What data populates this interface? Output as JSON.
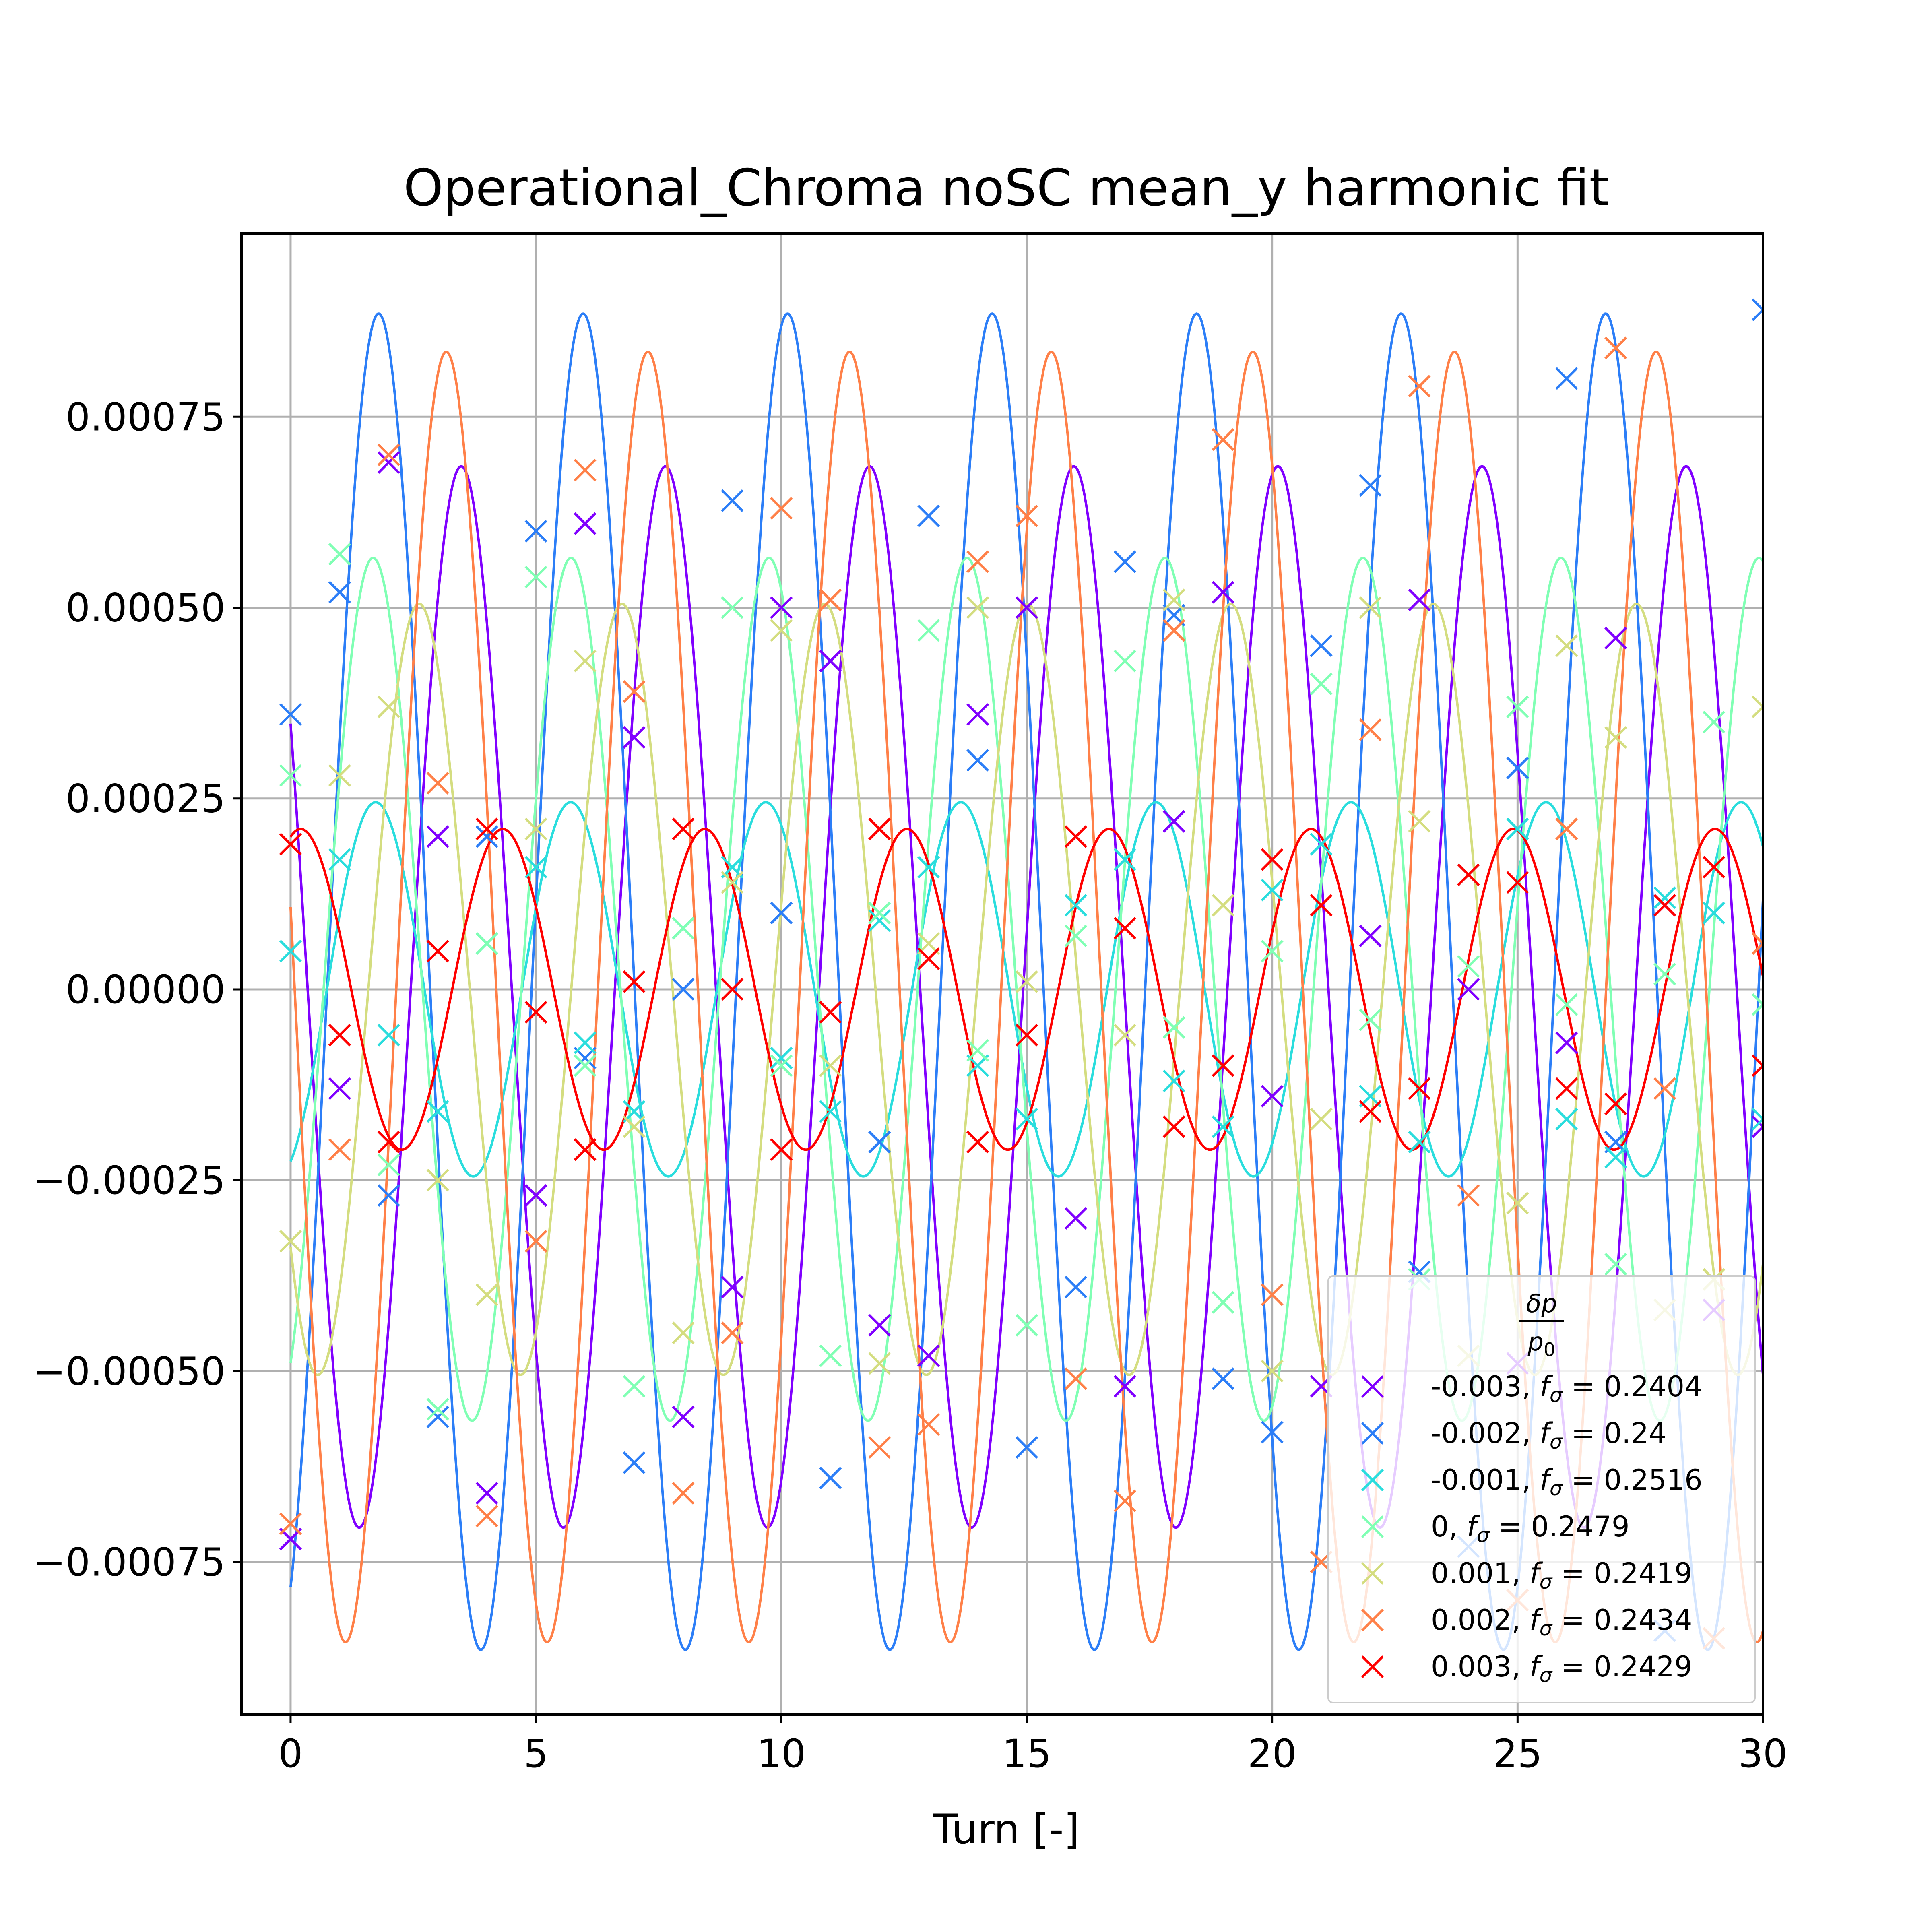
{
  "chart_data": {
    "type": "scatter",
    "title": "Operational_Chroma noSC mean_y harmonic fit",
    "xlabel": "Turn [-]",
    "ylabel": "",
    "xlim": [
      -1,
      30
    ],
    "ylim": [
      -0.00095,
      0.00099
    ],
    "xticks": [
      0,
      5,
      10,
      15,
      20,
      25,
      30
    ],
    "yticks": [
      0.00075,
      0.0005,
      0.00025,
      0.0,
      -0.00025,
      -0.0005,
      -0.00075
    ],
    "ytick_labels": [
      "0.00075",
      "0.00050",
      "0.00025",
      "0.00000",
      "−0.00025",
      "−0.00050",
      "−0.00075"
    ],
    "grid": true,
    "legend": {
      "placement": "lower-right",
      "title_num": "δp",
      "title_den": "p0"
    },
    "series": [
      {
        "name": "-0.003, f = 0.2404",
        "label_prefix": "-0.003, ",
        "label_value": " = 0.2404",
        "color": "#8000ff",
        "fit": {
          "amplitude": 0.000695,
          "frequency": 0.2404,
          "phase_deg": -211,
          "offset": -1e-05
        },
        "points": [
          [
            0,
            -0.00072
          ],
          [
            1,
            -0.00013
          ],
          [
            2,
            0.00069
          ],
          [
            3,
            0.0002
          ],
          [
            4,
            -0.00066
          ],
          [
            5,
            -0.00027
          ],
          [
            6,
            0.00061
          ],
          [
            7,
            0.00033
          ],
          [
            8,
            -0.00056
          ],
          [
            9,
            -0.00039
          ],
          [
            10,
            0.0005
          ],
          [
            11,
            0.00043
          ],
          [
            12,
            -0.00044
          ],
          [
            13,
            -0.00048
          ],
          [
            14,
            0.00036
          ],
          [
            15,
            0.0005
          ],
          [
            16,
            -0.0003
          ],
          [
            17,
            -0.00052
          ],
          [
            18,
            0.00022
          ],
          [
            19,
            0.00052
          ],
          [
            20,
            -0.00014
          ],
          [
            21,
            -0.00052
          ],
          [
            22,
            7e-05
          ],
          [
            23,
            0.00051
          ],
          [
            24,
            0.0
          ],
          [
            25,
            -0.00049
          ],
          [
            26,
            -7e-05
          ],
          [
            27,
            0.00046
          ],
          [
            28,
            0.00011
          ],
          [
            29,
            -0.00042
          ],
          [
            30,
            -0.00018
          ]
        ]
      },
      {
        "name": "-0.002, f = 0.24",
        "label_prefix": "-0.002, ",
        "label_value": " = 0.24",
        "color": "#2c7ef7",
        "fit": {
          "amplitude": 0.000875,
          "frequency": 0.24,
          "phase_deg": -65,
          "offset": 1e-05
        },
        "points": [
          [
            0,
            0.00036
          ],
          [
            1,
            0.00052
          ],
          [
            2,
            -0.00027
          ],
          [
            3,
            -0.00056
          ],
          [
            4,
            0.0002
          ],
          [
            5,
            0.0006
          ],
          [
            6,
            -9e-05
          ],
          [
            7,
            -0.00062
          ],
          [
            8,
            0.0
          ],
          [
            9,
            0.00064
          ],
          [
            10,
            0.0001
          ],
          [
            11,
            -0.00064
          ],
          [
            12,
            -0.0002
          ],
          [
            13,
            0.00062
          ],
          [
            14,
            0.0003
          ],
          [
            15,
            -0.0006
          ],
          [
            16,
            -0.00039
          ],
          [
            17,
            0.00056
          ],
          [
            18,
            0.00049
          ],
          [
            19,
            -0.00051
          ],
          [
            20,
            -0.00058
          ],
          [
            21,
            0.00045
          ],
          [
            22,
            0.00066
          ],
          [
            23,
            -0.00037
          ],
          [
            24,
            -0.00073
          ],
          [
            25,
            0.00029
          ],
          [
            26,
            0.0008
          ],
          [
            27,
            -0.0002
          ],
          [
            28,
            -0.00084
          ],
          [
            29,
            0.0001
          ],
          [
            30,
            0.00089
          ]
        ]
      },
      {
        "name": "-0.001, f = 0.2516",
        "label_prefix": "-0.001, ",
        "label_value": " = 0.2516",
        "color": "#2adddd",
        "fit": {
          "amplitude": 0.000245,
          "frequency": 0.2516,
          "phase_deg": -67,
          "offset": 0.0
        },
        "points": [
          [
            0,
            5e-05
          ],
          [
            1,
            0.00017
          ],
          [
            2,
            -6e-05
          ],
          [
            3,
            -0.00016
          ],
          [
            4,
            6e-05
          ],
          [
            5,
            0.00016
          ],
          [
            6,
            -7e-05
          ],
          [
            7,
            -0.00016
          ],
          [
            8,
            8e-05
          ],
          [
            9,
            0.00016
          ],
          [
            10,
            -9e-05
          ],
          [
            11,
            -0.00016
          ],
          [
            12,
            9e-05
          ],
          [
            13,
            0.00016
          ],
          [
            14,
            -0.0001
          ],
          [
            15,
            -0.00017
          ],
          [
            16,
            0.00011
          ],
          [
            17,
            0.00017
          ],
          [
            18,
            -0.00012
          ],
          [
            19,
            -0.00018
          ],
          [
            20,
            0.00013
          ],
          [
            21,
            0.00019
          ],
          [
            22,
            -0.00014
          ],
          [
            23,
            -0.0002
          ],
          [
            24,
            0.00015
          ],
          [
            25,
            0.00021
          ],
          [
            26,
            -0.00017
          ],
          [
            27,
            -0.00022
          ],
          [
            28,
            0.00012
          ],
          [
            29,
            0.0001
          ],
          [
            30,
            -0.00017
          ]
        ]
      },
      {
        "name": "0, f = 0.2479",
        "label_prefix": "0, ",
        "label_value": " = 0.2479",
        "color": "#80ffb4",
        "fit": {
          "amplitude": 0.000565,
          "frequency": 0.2479,
          "phase_deg": -60,
          "offset": 0.0
        },
        "points": [
          [
            0,
            0.00028
          ],
          [
            1,
            0.00057
          ],
          [
            2,
            -0.00023
          ],
          [
            3,
            -0.00055
          ],
          [
            4,
            6e-05
          ],
          [
            5,
            0.00054
          ],
          [
            6,
            -0.0001
          ],
          [
            7,
            -0.00052
          ],
          [
            8,
            8e-05
          ],
          [
            9,
            0.0005
          ],
          [
            10,
            -0.0001
          ],
          [
            11,
            -0.00048
          ],
          [
            12,
            0.0001
          ],
          [
            13,
            0.00047
          ],
          [
            14,
            -8e-05
          ],
          [
            15,
            -0.00044
          ],
          [
            16,
            7e-05
          ],
          [
            17,
            0.00043
          ],
          [
            18,
            -5e-05
          ],
          [
            19,
            -0.00041
          ],
          [
            20,
            5e-05
          ],
          [
            21,
            0.0004
          ],
          [
            22,
            -4e-05
          ],
          [
            23,
            -0.00038
          ],
          [
            24,
            3e-05
          ],
          [
            25,
            0.00037
          ],
          [
            26,
            -2e-05
          ],
          [
            27,
            -0.00036
          ],
          [
            28,
            2e-05
          ],
          [
            29,
            0.00035
          ],
          [
            30,
            -2e-05
          ]
        ]
      },
      {
        "name": "0.001, f = 0.2419",
        "label_prefix": "0.001, ",
        "label_value": " = 0.2419",
        "color": "#d4dd80",
        "fit": {
          "amplitude": 0.000505,
          "frequency": 0.2419,
          "phase_deg": -138,
          "offset": 0.0
        },
        "points": [
          [
            0,
            -0.00033
          ],
          [
            1,
            0.00028
          ],
          [
            2,
            0.00037
          ],
          [
            3,
            -0.00025
          ],
          [
            4,
            -0.0004
          ],
          [
            5,
            0.00021
          ],
          [
            6,
            0.00043
          ],
          [
            7,
            -0.00018
          ],
          [
            8,
            -0.00045
          ],
          [
            9,
            0.00014
          ],
          [
            10,
            0.00047
          ],
          [
            11,
            -0.0001
          ],
          [
            12,
            -0.00049
          ],
          [
            13,
            6e-05
          ],
          [
            14,
            0.0005
          ],
          [
            15,
            1e-05
          ],
          [
            16,
            -0.00051
          ],
          [
            17,
            -6e-05
          ],
          [
            18,
            0.00051
          ],
          [
            19,
            0.00011
          ],
          [
            20,
            -0.0005
          ],
          [
            21,
            -0.00017
          ],
          [
            22,
            0.0005
          ],
          [
            23,
            0.00022
          ],
          [
            24,
            -0.00048
          ],
          [
            25,
            -0.00028
          ],
          [
            26,
            0.00045
          ],
          [
            27,
            0.00033
          ],
          [
            28,
            -0.00042
          ],
          [
            29,
            -0.00038
          ],
          [
            30,
            0.00037
          ]
        ]
      },
      {
        "name": "0.002, f = 0.2434",
        "label_prefix": "0.002, ",
        "label_value": " = 0.2434",
        "color": "#ff8048",
        "fit": {
          "amplitude": 0.000845,
          "frequency": 0.2434,
          "phase_deg": -188,
          "offset": -1e-05
        },
        "points": [
          [
            0,
            -0.0007
          ],
          [
            1,
            -0.00021
          ],
          [
            2,
            0.0007
          ],
          [
            3,
            0.00027
          ],
          [
            4,
            -0.00069
          ],
          [
            5,
            -0.00033
          ],
          [
            6,
            0.00068
          ],
          [
            7,
            0.00039
          ],
          [
            8,
            -0.00066
          ],
          [
            9,
            -0.00045
          ],
          [
            10,
            0.00063
          ],
          [
            11,
            0.00051
          ],
          [
            12,
            -0.0006
          ],
          [
            13,
            -0.00057
          ],
          [
            14,
            0.00056
          ],
          [
            15,
            0.00062
          ],
          [
            16,
            -0.00051
          ],
          [
            17,
            -0.00067
          ],
          [
            18,
            0.00047
          ],
          [
            19,
            0.00072
          ],
          [
            20,
            -0.0004
          ],
          [
            21,
            -0.00075
          ],
          [
            22,
            0.00034
          ],
          [
            23,
            0.00079
          ],
          [
            24,
            -0.00027
          ],
          [
            25,
            -0.0008
          ],
          [
            26,
            0.00021
          ],
          [
            27,
            0.00084
          ],
          [
            28,
            -0.00013
          ],
          [
            29,
            -0.00085
          ],
          [
            30,
            6e-05
          ]
        ]
      },
      {
        "name": "0.003, f = 0.2429",
        "label_prefix": "0.003, ",
        "label_value": " = 0.2429",
        "color": "#ff0000",
        "fit": {
          "amplitude": 0.00021,
          "frequency": 0.2429,
          "phase_deg": 72,
          "offset": 0.0
        },
        "points": [
          [
            0,
            0.00019
          ],
          [
            1,
            -6e-05
          ],
          [
            2,
            -0.0002
          ],
          [
            3,
            5e-05
          ],
          [
            4,
            0.00021
          ],
          [
            5,
            -3e-05
          ],
          [
            6,
            -0.00021
          ],
          [
            7,
            1e-05
          ],
          [
            8,
            0.00021
          ],
          [
            9,
            0.0
          ],
          [
            10,
            -0.00021
          ],
          [
            11,
            -3e-05
          ],
          [
            12,
            0.00021
          ],
          [
            13,
            4e-05
          ],
          [
            14,
            -0.0002
          ],
          [
            15,
            -6e-05
          ],
          [
            16,
            0.0002
          ],
          [
            17,
            8e-05
          ],
          [
            18,
            -0.00018
          ],
          [
            19,
            -0.0001
          ],
          [
            20,
            0.00017
          ],
          [
            21,
            0.00011
          ],
          [
            22,
            -0.00016
          ],
          [
            23,
            -0.00013
          ],
          [
            24,
            0.00015
          ],
          [
            25,
            0.00014
          ],
          [
            26,
            -0.00013
          ],
          [
            27,
            -0.00015
          ],
          [
            28,
            0.00011
          ],
          [
            29,
            0.00016
          ],
          [
            30,
            -0.0001
          ]
        ]
      }
    ]
  }
}
